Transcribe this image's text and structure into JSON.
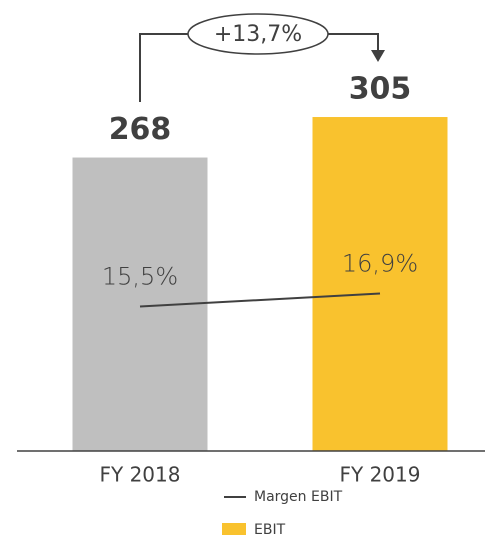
{
  "chart_data": {
    "type": "bar",
    "categories": [
      "FY 2018",
      "FY 2019"
    ],
    "series": [
      {
        "name": "EBIT",
        "type": "bar",
        "colors": [
          "#bfbfbf",
          "#f9c22e"
        ],
        "color": "#f9c22e",
        "values": [
          268,
          305
        ]
      },
      {
        "name": "Margen EBIT",
        "type": "line",
        "axis": "y2",
        "color": "#404040",
        "values": [
          15.5,
          16.9
        ],
        "value_labels": [
          "15,5%",
          "16,9%"
        ]
      }
    ],
    "annotation": "+13,7%",
    "ylim": [
      0,
      400
    ],
    "y2lim": [
      0,
      47
    ]
  }
}
